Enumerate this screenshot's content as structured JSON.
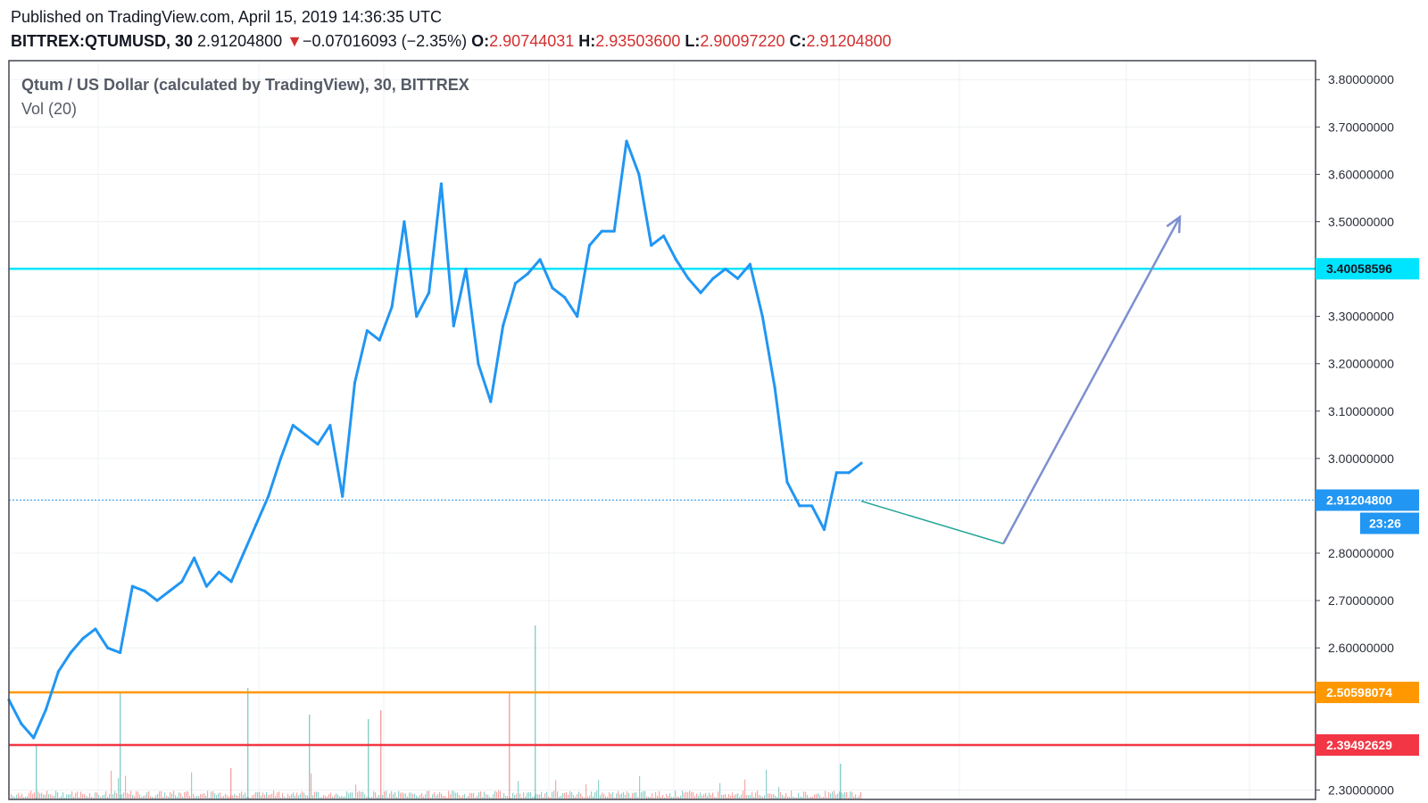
{
  "header": {
    "published": "Published on TradingView.com, April 15, 2019 14:36:35 UTC",
    "symbol": "BITTREX:QTUMUSD, 30",
    "last": "2.91204800",
    "change_arrow": "▼",
    "change": "−0.07016093 (−2.35%)",
    "o_label": "O:",
    "o_value": "2.90744031",
    "h_label": "H:",
    "h_value": "2.93503600",
    "l_label": "L:",
    "l_value": "2.90097220",
    "c_label": "C:",
    "c_value": "2.91204800"
  },
  "chart_data": {
    "type": "line",
    "title": "Qtum / US Dollar (calculated by TradingView), 30, BITTREX",
    "volume_label": "Vol (20)",
    "ylim": [
      2.28,
      3.84
    ],
    "yticks": [
      {
        "v": 2.3,
        "label": "2.30000000"
      },
      {
        "v": 2.6,
        "label": "2.60000000"
      },
      {
        "v": 2.7,
        "label": "2.70000000"
      },
      {
        "v": 2.8,
        "label": "2.80000000"
      },
      {
        "v": 3.0,
        "label": "3.00000000"
      },
      {
        "v": 3.1,
        "label": "3.10000000"
      },
      {
        "v": 3.2,
        "label": "3.20000000"
      },
      {
        "v": 3.3,
        "label": "3.30000000"
      },
      {
        "v": 3.5,
        "label": "3.50000000"
      },
      {
        "v": 3.6,
        "label": "3.60000000"
      },
      {
        "v": 3.7,
        "label": "3.70000000"
      },
      {
        "v": 3.8,
        "label": "3.80000000"
      }
    ],
    "x": [
      0,
      4,
      8,
      12,
      16,
      20,
      24,
      28,
      32,
      36,
      40,
      44,
      48,
      52,
      56,
      60,
      64,
      68,
      72,
      76,
      80,
      84,
      88,
      92,
      96,
      100,
      104,
      108,
      112,
      116,
      120,
      124,
      128,
      132,
      136,
      140,
      144,
      148,
      152,
      156,
      160,
      164,
      168,
      172,
      176,
      180,
      184,
      188,
      192,
      196,
      200,
      204,
      208,
      212,
      216,
      220,
      224,
      228,
      232,
      236,
      240,
      244,
      248,
      252,
      256,
      260,
      264,
      268,
      272,
      276
    ],
    "series": [
      {
        "color": "#2196f3",
        "values": [
          2.49,
          2.44,
          2.41,
          2.47,
          2.55,
          2.59,
          2.62,
          2.64,
          2.6,
          2.59,
          2.73,
          2.72,
          2.7,
          2.72,
          2.74,
          2.79,
          2.73,
          2.76,
          2.74,
          2.8,
          2.86,
          2.92,
          3.0,
          3.07,
          3.05,
          3.03,
          3.07,
          2.92,
          3.16,
          3.27,
          3.25,
          3.32,
          3.5,
          3.3,
          3.35,
          3.58,
          3.28,
          3.4,
          3.2,
          3.12,
          3.28,
          3.37,
          3.39,
          3.42,
          3.36,
          3.34,
          3.3,
          3.45,
          3.48,
          3.48,
          3.67,
          3.6,
          3.45,
          3.47,
          3.42,
          3.38,
          3.35,
          3.38,
          3.4,
          3.38,
          3.41,
          3.3,
          3.15,
          2.95,
          2.9,
          2.9,
          2.85,
          2.97,
          2.97,
          2.99
        ]
      }
    ],
    "projection": {
      "color": "#26a69a",
      "values": [
        2.91,
        2.82
      ]
    },
    "arrow": {
      "color": "#7e8fcf",
      "values": [
        2.82,
        3.51
      ]
    },
    "hlines": [
      {
        "v": 3.40058596,
        "label": "3.40058596",
        "color": "#00e5ff",
        "text_color": "#131722"
      },
      {
        "v": 2.912048,
        "label": "2.91204800",
        "color": "#2196f3",
        "text_color": "#ffffff",
        "dashed": true,
        "sub_label": "23:26"
      },
      {
        "v": 2.50598074,
        "label": "2.50598074",
        "color": "#ff9800",
        "text_color": "#ffffff"
      },
      {
        "v": 2.39492629,
        "label": "2.39492629",
        "color": "#f23645",
        "text_color": "#ffffff"
      }
    ],
    "volume_colors": {
      "up": "#26a69a",
      "down": "#ef5350"
    },
    "grid": true
  }
}
